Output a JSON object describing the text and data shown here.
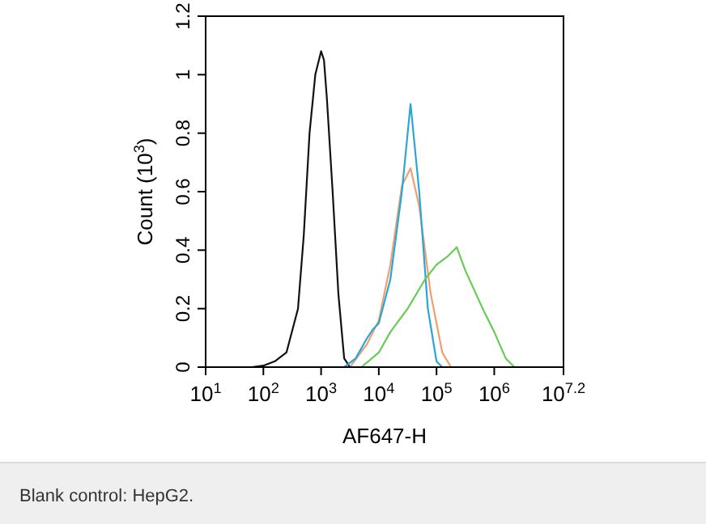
{
  "chart_data": {
    "type": "line",
    "xlabel": "AF647-H",
    "ylabel": "Count (10$^{3}$)",
    "log": "x",
    "xlim": [
      10,
      15848932
    ],
    "xticks": [
      {
        "value": 10,
        "label": "10$^{1}$"
      },
      {
        "value": 100,
        "label": "10$^{2}$"
      },
      {
        "value": 1000,
        "label": "10$^{3}$"
      },
      {
        "value": 10000,
        "label": "10$^{4}$"
      },
      {
        "value": 100000,
        "label": "10$^{5}$"
      },
      {
        "value": 1000000,
        "label": "10$^{6}$"
      },
      {
        "value": 15848932,
        "label": "10$^{7.2}$"
      }
    ],
    "ylim": [
      0,
      1.2
    ],
    "yticks": [
      0,
      0.2,
      0.4,
      0.6,
      0.8,
      1,
      1.2
    ],
    "grid": false,
    "series": [
      {
        "color": "#111111",
        "x": [
          63,
          100,
          158,
          251,
          398,
          501,
          631,
          794,
          1000,
          1122,
          1259,
          1585,
          1995,
          2512,
          3162
        ],
        "values": [
          0,
          0.005,
          0.02,
          0.05,
          0.2,
          0.45,
          0.8,
          1.0,
          1.08,
          1.05,
          0.92,
          0.6,
          0.25,
          0.03,
          0
        ]
      },
      {
        "color": "#f0a070",
        "x": [
          3162,
          6310,
          10000,
          15849,
          25119,
          35481,
          50119,
          79433,
          125893,
          177828
        ],
        "values": [
          0,
          0.08,
          0.16,
          0.35,
          0.62,
          0.68,
          0.55,
          0.25,
          0.05,
          0
        ]
      },
      {
        "color": "#2aa6d6",
        "x": [
          2512,
          3981,
          6310,
          7943,
          10000,
          15849,
          25119,
          35481,
          50119,
          70795,
          100000,
          125893
        ],
        "values": [
          0,
          0.03,
          0.1,
          0.13,
          0.15,
          0.3,
          0.6,
          0.9,
          0.6,
          0.2,
          0.02,
          0
        ]
      },
      {
        "color": "#66cc55",
        "x": [
          5012,
          10000,
          15849,
          31623,
          63096,
          100000,
          158489,
          223872,
          316228,
          630957,
          1000000,
          1584893,
          2238721
        ],
        "values": [
          0,
          0.05,
          0.12,
          0.2,
          0.3,
          0.35,
          0.38,
          0.41,
          0.33,
          0.2,
          0.12,
          0.03,
          0
        ]
      }
    ],
    "annotations": [
      "Blank control: HepG2."
    ]
  }
}
